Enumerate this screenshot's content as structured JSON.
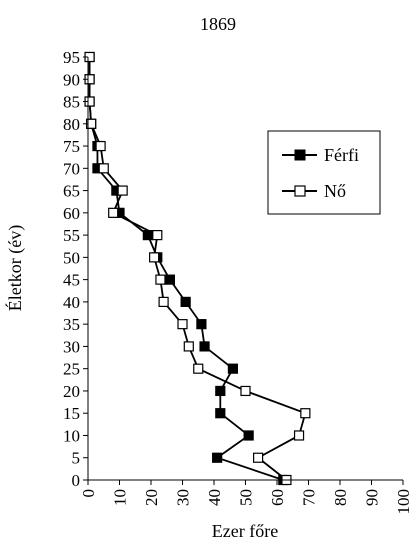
{
  "chart_data": {
    "type": "line",
    "title": "1869",
    "xlabel": "Ezer főre",
    "ylabel": "Életkor (év)",
    "xlim": [
      0,
      100
    ],
    "ylim": [
      0,
      95
    ],
    "xticks": [
      0,
      10,
      20,
      30,
      40,
      50,
      60,
      70,
      80,
      90,
      100
    ],
    "yticks": [
      0,
      5,
      10,
      15,
      20,
      25,
      30,
      35,
      40,
      45,
      50,
      55,
      60,
      65,
      70,
      75,
      80,
      85,
      90,
      95
    ],
    "grid": false,
    "legend_position": "right",
    "series": [
      {
        "name": "Férfi",
        "marker": "filled-square",
        "color": "#000000",
        "points": [
          [
            62,
            0
          ],
          [
            41,
            5
          ],
          [
            51,
            10
          ],
          [
            42,
            15
          ],
          [
            42,
            20
          ],
          [
            46,
            25
          ],
          [
            37,
            30
          ],
          [
            36,
            35
          ],
          [
            31,
            40
          ],
          [
            26,
            45
          ],
          [
            22,
            50
          ],
          [
            19,
            55
          ],
          [
            10,
            60
          ],
          [
            9,
            65
          ],
          [
            3,
            70
          ],
          [
            3,
            75
          ],
          [
            1,
            80
          ],
          [
            0.5,
            85
          ],
          [
            0.5,
            90
          ],
          [
            0.5,
            95
          ]
        ]
      },
      {
        "name": "Nő",
        "marker": "open-square",
        "color": "#000000",
        "points": [
          [
            63,
            0
          ],
          [
            54,
            5
          ],
          [
            67,
            10
          ],
          [
            69,
            15
          ],
          [
            50,
            20
          ],
          [
            35,
            25
          ],
          [
            32,
            30
          ],
          [
            30,
            35
          ],
          [
            24,
            40
          ],
          [
            23,
            45
          ],
          [
            21,
            50
          ],
          [
            22,
            55
          ],
          [
            8,
            60
          ],
          [
            11,
            65
          ],
          [
            5,
            70
          ],
          [
            4,
            75
          ],
          [
            1,
            80
          ],
          [
            0.5,
            85
          ],
          [
            0.5,
            90
          ],
          [
            0.5,
            95
          ]
        ]
      }
    ]
  }
}
